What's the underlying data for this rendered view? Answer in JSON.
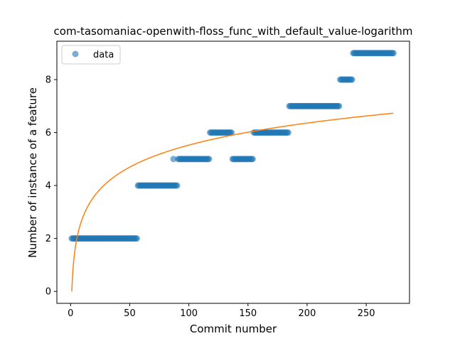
{
  "chart_data": {
    "type": "scatter",
    "title": "com-tasomaniac-openwith-floss_func_with_default_value-logarithm",
    "xlabel": "Commit number",
    "ylabel": "Number of instance of a feature",
    "xlim": [
      -11.6,
      286.6
    ],
    "ylim": [
      -0.45,
      9.45
    ],
    "xticks": [
      0,
      50,
      100,
      150,
      200,
      250
    ],
    "yticks": [
      0,
      2,
      4,
      6,
      8
    ],
    "grid": false,
    "legend_position": "upper-left",
    "series": [
      {
        "name": "data",
        "kind": "scatter",
        "color": "#1f77b4",
        "alpha": 0.6,
        "segments": [
          {
            "x_start": 1,
            "x_end": 56,
            "y": 2
          },
          {
            "x_start": 57,
            "x_end": 90,
            "y": 4
          },
          {
            "x_start": 87,
            "x_end": 87,
            "y": 5
          },
          {
            "x_start": 91,
            "x_end": 117,
            "y": 5
          },
          {
            "x_start": 118,
            "x_end": 136,
            "y": 6
          },
          {
            "x_start": 137,
            "x_end": 154,
            "y": 5
          },
          {
            "x_start": 155,
            "x_end": 184,
            "y": 6
          },
          {
            "x_start": 185,
            "x_end": 227,
            "y": 7
          },
          {
            "x_start": 228,
            "x_end": 238,
            "y": 8
          },
          {
            "x_start": 239,
            "x_end": 273,
            "y": 9
          }
        ]
      },
      {
        "kind": "line",
        "color": "#ff7f0e",
        "model": "logarithmic",
        "a": 1.2,
        "b": 0.0,
        "x_range": [
          1,
          273
        ]
      }
    ]
  }
}
